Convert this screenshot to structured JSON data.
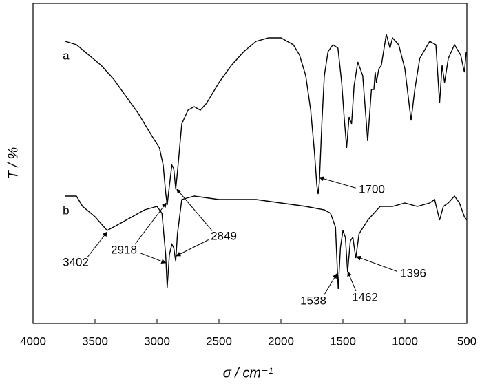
{
  "chart_data": {
    "type": "line",
    "xlabel": "σ / cm⁻¹",
    "ylabel": "T / %",
    "xlim": [
      4000,
      500
    ],
    "xticks": [
      4000,
      3500,
      3000,
      2500,
      2000,
      1500,
      1000,
      500
    ],
    "ylim": [
      0,
      465
    ],
    "grid": false,
    "series": [
      {
        "name": "a",
        "color": "#000000",
        "x": [
          3740,
          3650,
          3550,
          3450,
          3350,
          3250,
          3150,
          3050,
          2980,
          2950,
          2930,
          2918,
          2900,
          2880,
          2865,
          2849,
          2835,
          2800,
          2750,
          2700,
          2650,
          2600,
          2500,
          2400,
          2300,
          2200,
          2100,
          2000,
          1900,
          1850,
          1800,
          1760,
          1730,
          1710,
          1700,
          1690,
          1670,
          1650,
          1620,
          1580,
          1540,
          1510,
          1490,
          1470,
          1450,
          1430,
          1410,
          1380,
          1340,
          1300,
          1270,
          1250,
          1240,
          1230,
          1210,
          1190,
          1150,
          1120,
          1100,
          1050,
          1000,
          950,
          920,
          880,
          800,
          750,
          720,
          700,
          680,
          650,
          600,
          550,
          520,
          505
        ],
        "values": [
          410,
          405,
          390,
          375,
          355,
          330,
          305,
          275,
          255,
          230,
          190,
          172,
          200,
          230,
          225,
          195,
          220,
          290,
          310,
          315,
          310,
          320,
          350,
          375,
          395,
          410,
          415,
          415,
          405,
          390,
          360,
          310,
          250,
          200,
          188,
          205,
          290,
          360,
          395,
          405,
          400,
          350,
          300,
          255,
          300,
          290,
          345,
          380,
          360,
          265,
          340,
          340,
          365,
          350,
          370,
          375,
          420,
          400,
          415,
          405,
          370,
          295,
          340,
          385,
          410,
          405,
          320,
          375,
          350,
          385,
          405,
          390,
          365,
          395
        ]
      },
      {
        "name": "b",
        "color": "#000000",
        "x": [
          3740,
          3650,
          3600,
          3500,
          3402,
          3300,
          3200,
          3100,
          3000,
          2960,
          2930,
          2918,
          2900,
          2880,
          2865,
          2849,
          2835,
          2800,
          2700,
          2500,
          2200,
          2000,
          1800,
          1650,
          1600,
          1560,
          1538,
          1520,
          1500,
          1480,
          1462,
          1440,
          1420,
          1396,
          1370,
          1300,
          1200,
          1100,
          1000,
          900,
          800,
          760,
          720,
          690,
          650,
          600,
          560,
          520,
          500
        ],
        "values": [
          185,
          185,
          170,
          155,
          135,
          145,
          155,
          165,
          170,
          160,
          100,
          52,
          100,
          115,
          110,
          90,
          130,
          180,
          185,
          180,
          180,
          175,
          170,
          165,
          160,
          140,
          50,
          110,
          135,
          125,
          75,
          120,
          125,
          95,
          130,
          150,
          170,
          170,
          175,
          170,
          175,
          180,
          150,
          170,
          175,
          185,
          175,
          155,
          150
        ]
      }
    ],
    "annotations": [
      {
        "text": "1700",
        "targets": [
          {
            "x": 1690,
            "y": 212
          }
        ]
      },
      {
        "text": "2918",
        "targets": [
          {
            "x": 2925,
            "y": 175
          },
          {
            "x": 2930,
            "y": 88
          }
        ]
      },
      {
        "text": "2849",
        "targets": [
          {
            "x": 2840,
            "y": 195
          },
          {
            "x": 2845,
            "y": 98
          }
        ]
      },
      {
        "text": "3402",
        "targets": [
          {
            "x": 3402,
            "y": 133
          }
        ]
      },
      {
        "text": "1538",
        "targets": [
          {
            "x": 1550,
            "y": 72
          }
        ]
      },
      {
        "text": "1462",
        "targets": [
          {
            "x": 1460,
            "y": 75
          }
        ]
      },
      {
        "text": "1396",
        "targets": [
          {
            "x": 1390,
            "y": 97
          }
        ]
      }
    ]
  }
}
